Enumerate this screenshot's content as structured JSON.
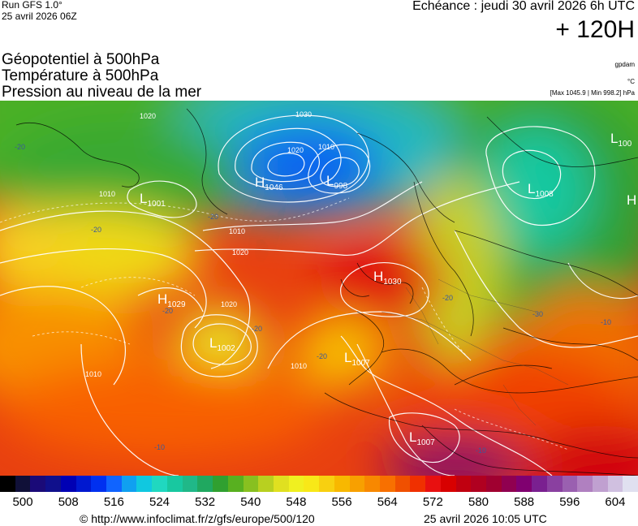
{
  "header": {
    "run_label": "Run GFS 1.0°",
    "run_date": "25 avril 2026 06Z",
    "echeance": "Echéance : jeudi 30 avril 2026 6h UTC",
    "forecast_hour": "+ 120H",
    "credit_small": "gpdam",
    "unit_small": "°C",
    "maxmin": "[Max 1045.9 | Min 998.2] hPa"
  },
  "titles": [
    "Géopotentiel à 500hPa",
    "Température à 500hPa",
    "Pression au niveau de la mer"
  ],
  "pressure_centers": [
    {
      "type": "H",
      "value": "1046"
    },
    {
      "type": "L",
      "value": "998"
    },
    {
      "type": "L",
      "value": "1001"
    },
    {
      "type": "L",
      "value": "1008"
    },
    {
      "type": "L",
      "value": "100"
    },
    {
      "type": "H",
      "value": ""
    },
    {
      "type": "H",
      "value": "1029"
    },
    {
      "type": "H",
      "value": "1030"
    },
    {
      "type": "L",
      "value": "1002"
    },
    {
      "type": "L",
      "value": "1007"
    },
    {
      "type": "L",
      "value": "1007"
    }
  ],
  "isobar_labels": [
    "1020",
    "1010",
    "1030",
    "1020",
    "1010",
    "1010",
    "1020",
    "1020",
    "1010",
    "1010"
  ],
  "temperature_labels": [
    "-20",
    "-20",
    "-20",
    "-20",
    "-20",
    "-20",
    "-20",
    "-30",
    "-10",
    "-10",
    "-10"
  ],
  "colorbar": {
    "colors": [
      "#000000",
      "#101038",
      "#1a0a78",
      "#10108c",
      "#0000b4",
      "#0018d0",
      "#0030f0",
      "#1064ff",
      "#10a0f0",
      "#10c8e0",
      "#20d8c0",
      "#18c8a0",
      "#20b888",
      "#20a860",
      "#30a030",
      "#58b020",
      "#88c020",
      "#b8d020",
      "#e0e020",
      "#f0f020",
      "#f8e818",
      "#f8d010",
      "#f8b800",
      "#f8a000",
      "#f88800",
      "#f87000",
      "#f05000",
      "#f03000",
      "#e81010",
      "#d80000",
      "#c00010",
      "#b00020",
      "#a00030",
      "#900050",
      "#800070",
      "#7a2090",
      "#8a40a0",
      "#9a60b0",
      "#b080c0",
      "#c0a0d0",
      "#d0c0e0",
      "#e0e0f0"
    ],
    "tick_labels": [
      "500",
      "508",
      "516",
      "524",
      "532",
      "540",
      "548",
      "556",
      "564",
      "572",
      "580",
      "588",
      "596",
      "604"
    ]
  },
  "footer": {
    "url": "© http://www.infoclimat.fr/z/gfs/europe/500/120",
    "date": "25 avril 2026 10:05 UTC"
  }
}
